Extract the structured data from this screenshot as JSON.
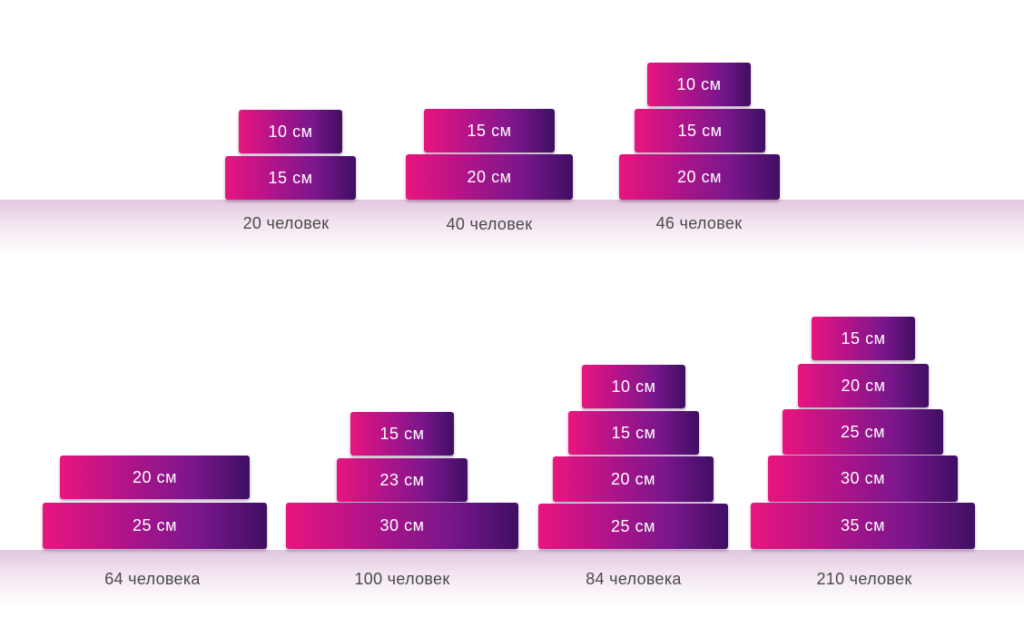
{
  "cakes": [
    {
      "caption": "20 человек",
      "tiers": [
        "10 см",
        "15 см"
      ]
    },
    {
      "caption": "40 человек",
      "tiers": [
        "15 см",
        "20 см"
      ]
    },
    {
      "caption": "46 человек",
      "tiers": [
        "10 см",
        "15 см",
        "20 см"
      ]
    },
    {
      "caption": "64 человека",
      "tiers": [
        "20 см",
        "25 см"
      ]
    },
    {
      "caption": "100 человек",
      "tiers": [
        "15 см",
        "23 см",
        "30 см"
      ]
    },
    {
      "caption": "84 человека",
      "tiers": [
        "10 см",
        "15 см",
        "20 см",
        "25 см"
      ]
    },
    {
      "caption": "210 человек",
      "tiers": [
        "15 см",
        "20 см",
        "25 см",
        "30 см",
        "35 см"
      ]
    }
  ],
  "colors": {
    "tier_gradient_start": "#e8157f",
    "tier_gradient_end": "#3f0f63",
    "shelf": "#e2c7de",
    "caption_text": "#4a4a4a"
  }
}
